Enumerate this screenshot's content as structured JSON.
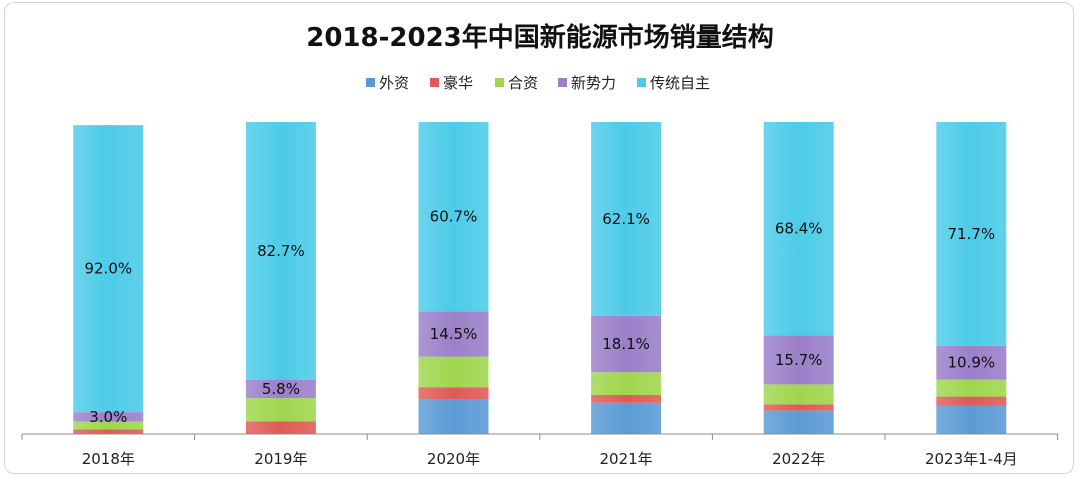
{
  "chart_data": {
    "type": "bar",
    "stacked": true,
    "percent": true,
    "title": "2018-2023年中国新能源市场销量结构",
    "xlabel": "",
    "ylabel": "",
    "ylim": [
      0,
      100
    ],
    "grid": false,
    "legend_position": "top",
    "categories": [
      "2018年",
      "2019年",
      "2020年",
      "2021年",
      "2022年",
      "2023年1-4月"
    ],
    "series": [
      {
        "name": "外资",
        "color": "#5b9bd5",
        "values": [
          0.0,
          0.0,
          11.0,
          10.0,
          7.5,
          9.0
        ]
      },
      {
        "name": "豪华",
        "color": "#e05a57",
        "values": [
          1.5,
          4.0,
          4.0,
          2.5,
          2.0,
          3.0
        ]
      },
      {
        "name": "合资",
        "color": "#9fd64d",
        "values": [
          2.5,
          7.5,
          9.8,
          7.3,
          6.4,
          5.4
        ]
      },
      {
        "name": "新势力",
        "color": "#9b7fc9",
        "values": [
          3.0,
          5.8,
          14.5,
          18.1,
          15.7,
          10.9
        ]
      },
      {
        "name": "传统自主",
        "color": "#4ccbe8",
        "values": [
          92.0,
          82.7,
          60.7,
          62.1,
          68.4,
          71.7
        ]
      }
    ],
    "data_labels": [
      {
        "series": "新势力",
        "category": "2018年",
        "text": "3.0%"
      },
      {
        "series": "传统自主",
        "category": "2018年",
        "text": "92.0%"
      },
      {
        "series": "新势力",
        "category": "2019年",
        "text": "5.8%"
      },
      {
        "series": "传统自主",
        "category": "2019年",
        "text": "82.7%"
      },
      {
        "series": "新势力",
        "category": "2020年",
        "text": "14.5%"
      },
      {
        "series": "传统自主",
        "category": "2020年",
        "text": "60.7%"
      },
      {
        "series": "新势力",
        "category": "2021年",
        "text": "18.1%"
      },
      {
        "series": "传统自主",
        "category": "2021年",
        "text": "62.1%"
      },
      {
        "series": "新势力",
        "category": "2022年",
        "text": "15.7%"
      },
      {
        "series": "传统自主",
        "category": "2022年",
        "text": "68.4%"
      },
      {
        "series": "新势力",
        "category": "2023年1-4月",
        "text": "10.9%"
      },
      {
        "series": "传统自主",
        "category": "2023年1-4月",
        "text": "71.7%"
      }
    ]
  }
}
